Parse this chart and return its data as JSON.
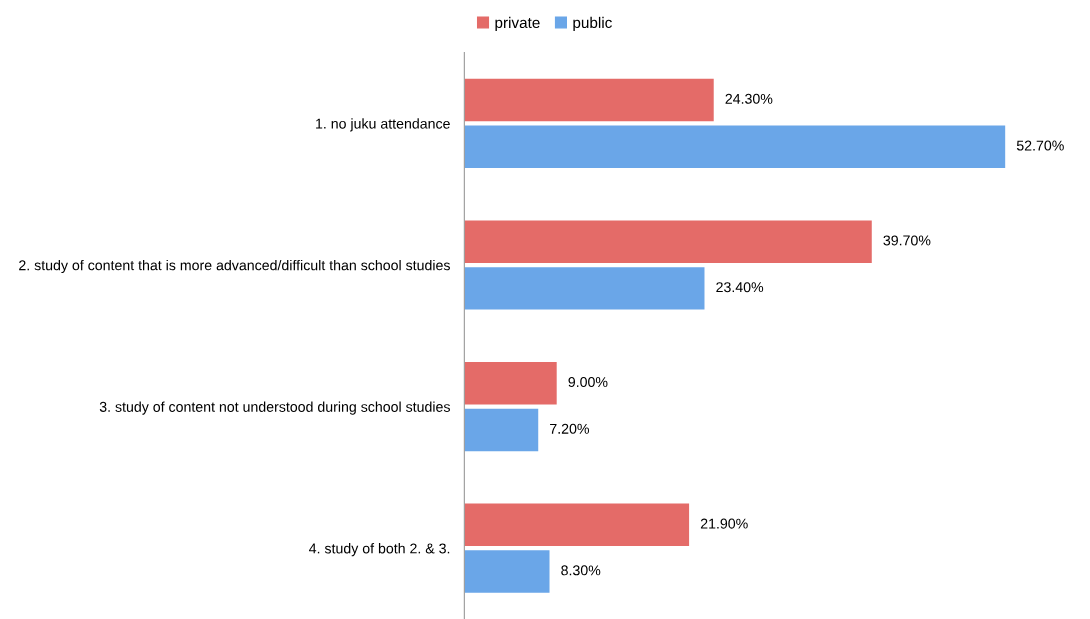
{
  "chart_data": {
    "type": "bar",
    "orientation": "horizontal",
    "categories": [
      "1. no juku attendance",
      "2. study of content that is more advanced/difficult than school studies",
      "3. study of content not understood during school studies",
      "4. study of both 2. & 3."
    ],
    "series": [
      {
        "name": "private",
        "color": "#e46b68",
        "values": [
          24.3,
          39.7,
          9.0,
          21.9
        ],
        "value_labels": [
          "24.30%",
          "39.70%",
          "9.00%",
          "21.90%"
        ]
      },
      {
        "name": "public",
        "color": "#6aa6e8",
        "values": [
          52.7,
          23.4,
          7.2,
          8.3
        ],
        "value_labels": [
          "52.70%",
          "23.40%",
          "7.20%",
          "8.30%"
        ]
      }
    ],
    "tick_labels": "y",
    "legend": "top",
    "grid": false
  }
}
